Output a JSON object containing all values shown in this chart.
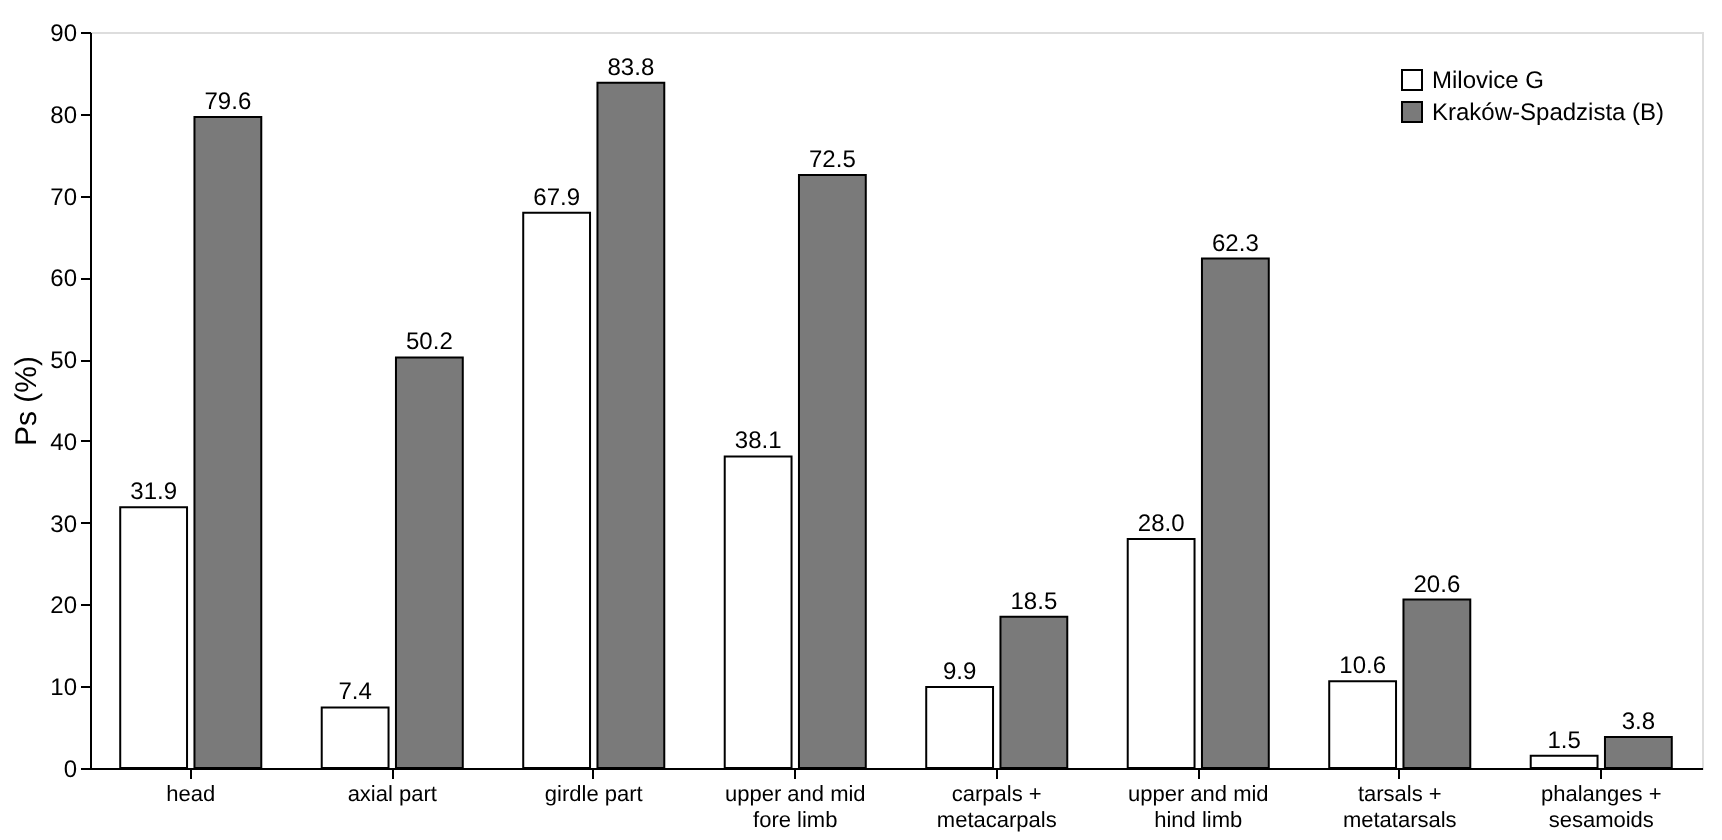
{
  "chart_data": {
    "type": "bar",
    "ylabel": "Ps (%)",
    "categories": [
      "head",
      "axial part",
      "girdle part",
      "upper and mid\nfore limb",
      "carpals +\nmetacarpals",
      "upper and mid\nhind limb",
      "tarsals +\nmetatarsals",
      "phalanges +\nsesamoids"
    ],
    "series": [
      {
        "name": "Milovice G",
        "color": "#ffffff",
        "values": [
          31.9,
          7.4,
          67.9,
          38.1,
          9.9,
          28.0,
          10.6,
          1.5
        ],
        "value_labels": [
          "31.9",
          "7.4",
          "67.9",
          "38.1",
          "9.9",
          "28.0",
          "10.6",
          "1.5"
        ]
      },
      {
        "name": "Kraków-Spadzista (B)",
        "color": "#7a7a7a",
        "values": [
          79.6,
          50.2,
          83.8,
          72.5,
          18.5,
          62.3,
          20.6,
          3.8
        ],
        "value_labels": [
          "79.6",
          "50.2",
          "83.8",
          "72.5",
          "18.5",
          "62.3",
          "20.6",
          "3.8"
        ]
      }
    ],
    "ylim": [
      0,
      90
    ],
    "yticks": [
      0,
      10,
      20,
      30,
      40,
      50,
      60,
      70,
      80,
      90
    ],
    "grid": false,
    "legend": "top right"
  }
}
